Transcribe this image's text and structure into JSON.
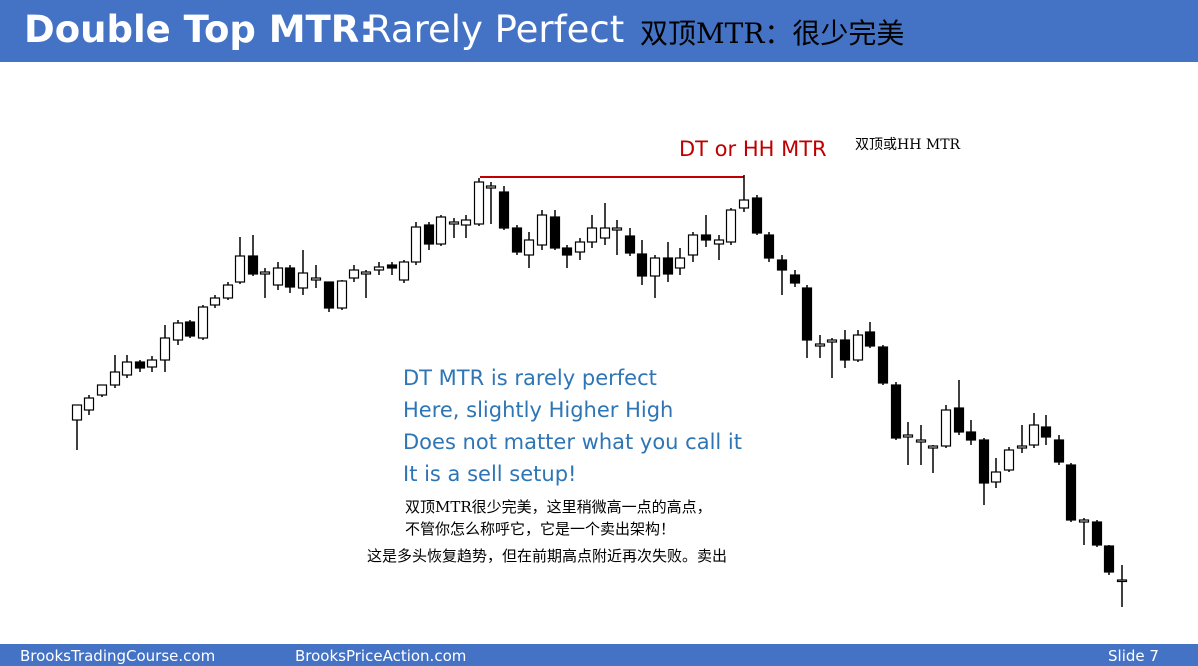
{
  "header": {
    "title_bold": "Double Top MTR:",
    "title_rest": "Rarely Perfect",
    "title_cn": "双顶MTR：很少完美"
  },
  "chart": {
    "label_en": "DT or HH MTR",
    "label_cn": "双顶或HH MTR"
  },
  "notes": {
    "lines": [
      "DT MTR is rarely perfect",
      "Here, slightly Higher High",
      "Does not matter what you call it",
      "It is a sell setup!"
    ],
    "cn_lines": [
      "双顶MTR很少完美，这里稍微高一点的高点，",
      "不管你怎么称呼它，它是一个卖出架构！",
      "这是多头恢复趋势，但在前期高点附近再次失败。卖出"
    ]
  },
  "footer": {
    "left": "BrooksTradingCourse.com",
    "middle": "BrooksPriceAction.com",
    "slide": "Slide  7"
  }
}
